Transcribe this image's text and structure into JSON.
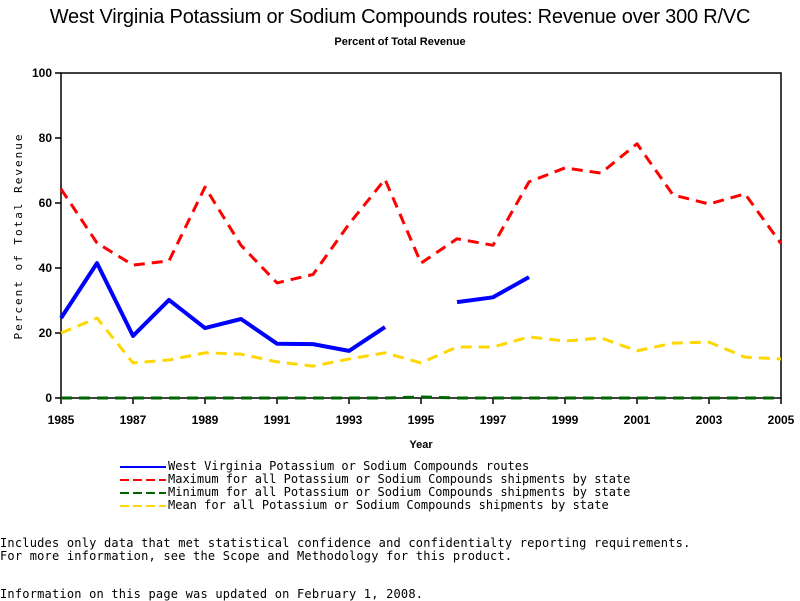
{
  "chart_data": {
    "type": "line",
    "title": "West Virginia Potassium or Sodium Compounds routes: Revenue over 300 R/VC",
    "subtitle": "Percent of Total Revenue",
    "xlabel": "Year",
    "ylabel": "Percent of Total Revenue",
    "xlim": [
      1985,
      2005
    ],
    "ylim": [
      0,
      100
    ],
    "x_ticks": [
      "1985",
      "1987",
      "1989",
      "1991",
      "1993",
      "1995",
      "1997",
      "1999",
      "2001",
      "2003",
      "2005"
    ],
    "y_ticks": [
      "0",
      "20",
      "40",
      "60",
      "80",
      "100"
    ],
    "grid": false,
    "legend_position": "bottom",
    "x": [
      1985,
      1986,
      1987,
      1988,
      1989,
      1990,
      1991,
      1992,
      1993,
      1994,
      1995,
      1996,
      1997,
      1998,
      1999,
      2000,
      2001,
      2002,
      2003,
      2004,
      2005
    ],
    "series": [
      {
        "name": "West Virginia Potassium or Sodium Compounds routes",
        "color": "#0000ff",
        "style": "solid",
        "values": [
          24.6,
          41.5,
          19.1,
          30.2,
          21.5,
          24.3,
          16.7,
          16.6,
          14.5,
          21.8,
          null,
          29.5,
          31.0,
          37.2,
          null,
          null,
          null,
          null,
          null,
          null,
          null
        ]
      },
      {
        "name": "Maximum for all Potassium or Sodium Compounds shipments by state",
        "color": "#ff0000",
        "style": "dashed",
        "values": [
          64.3,
          47.7,
          40.9,
          42.2,
          64.9,
          47.0,
          35.4,
          38.0,
          53.5,
          67.3,
          41.5,
          49.0,
          47.0,
          66.5,
          70.8,
          69.2,
          78.2,
          62.5,
          59.7,
          62.8,
          47.5
        ]
      },
      {
        "name": "Minimum for all Potassium or Sodium Compounds shipments by state",
        "color": "#006400",
        "style": "dashed",
        "values": [
          0,
          0,
          0,
          0,
          0,
          0,
          0,
          0,
          0,
          0,
          0.3,
          0,
          0,
          0,
          0,
          0,
          0,
          0,
          0,
          0,
          0
        ]
      },
      {
        "name": "Mean for all Potassium or Sodium Compounds shipments by state",
        "color": "#ffd700",
        "style": "dashed",
        "values": [
          20.0,
          24.6,
          10.8,
          11.7,
          13.9,
          13.5,
          11.1,
          9.8,
          12.0,
          13.9,
          10.8,
          15.7,
          15.7,
          18.8,
          17.5,
          18.5,
          14.5,
          16.9,
          17.2,
          12.6,
          12.0
        ]
      }
    ]
  },
  "notes": {
    "line1": "Includes only data that met statistical confidence and confidentialty reporting requirements.",
    "line2": "For more information, see the Scope and Methodology for this product.",
    "updated": "Information on this page was updated on February 1, 2008."
  }
}
